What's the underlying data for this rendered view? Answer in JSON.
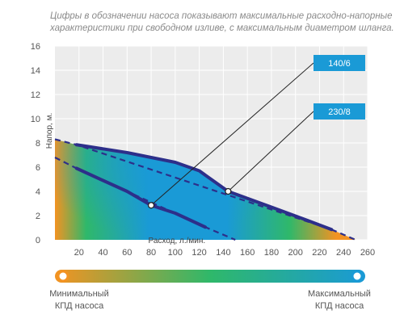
{
  "note": {
    "line1": "Цифры в обозначении насоса показывают максимальные расходно-напорные",
    "line2": "характеристики при свободном изливе, с максимальным диаметром шланга."
  },
  "chart_data": {
    "type": "line",
    "xlabel": "Расход, л./мин.",
    "ylabel": "Напор, м.",
    "xlim": [
      0,
      260
    ],
    "ylim": [
      0,
      16
    ],
    "x_ticks": [
      20,
      40,
      60,
      80,
      100,
      120,
      140,
      160,
      180,
      200,
      220,
      240,
      260
    ],
    "y_ticks": [
      0,
      2,
      4,
      6,
      8,
      10,
      12,
      14,
      16
    ],
    "grid": true,
    "series": [
      {
        "name": "140/6",
        "color": "#2d2f8a",
        "solid": [
          [
            18,
            5.9
          ],
          [
            40,
            4.9
          ],
          [
            60,
            4.0
          ],
          [
            80,
            2.85
          ],
          [
            100,
            2.2
          ],
          [
            125,
            1.05
          ]
        ],
        "dashed": [
          [
            0,
            6.8
          ],
          [
            18,
            5.9
          ],
          [
            125,
            1.05
          ],
          [
            150,
            0
          ]
        ]
      },
      {
        "name": "230/8",
        "color": "#2d2f8a",
        "solid": [
          [
            18,
            7.85
          ],
          [
            60,
            7.2
          ],
          [
            100,
            6.4
          ],
          [
            120,
            5.7
          ],
          [
            144,
            4.0
          ],
          [
            180,
            2.7
          ],
          [
            210,
            1.6
          ],
          [
            230,
            0.85
          ]
        ],
        "dashed": [
          [
            0,
            8.3
          ],
          [
            18,
            7.85
          ],
          [
            230,
            0.85
          ],
          [
            250,
            0
          ]
        ]
      }
    ],
    "callouts": [
      {
        "label": "140/6",
        "point": [
          80,
          2.85
        ]
      },
      {
        "label": "230/8",
        "point": [
          144,
          4.0
        ]
      }
    ],
    "colors": {
      "min_efficiency": "#f39322",
      "max_efficiency": "#1a9ad6",
      "mid": "#2fb86a",
      "curve": "#2d2f8a",
      "badge": "#1a9ad6"
    },
    "efficiency_bar": {
      "min_label_line1": "Минимальный",
      "min_label_line2": "КПД насоса",
      "max_label_line1": "Максимальный",
      "max_label_line2": "КПД насоса"
    }
  }
}
